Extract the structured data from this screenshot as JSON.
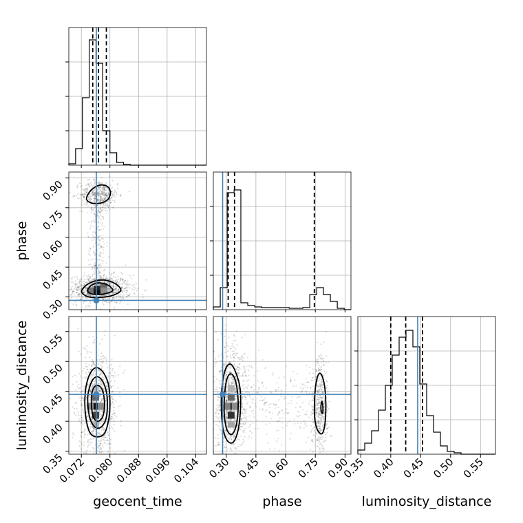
{
  "chart_data": {
    "type": "corner",
    "parameters": [
      "geocent_time",
      "phase",
      "luminosity_distance"
    ],
    "axes": {
      "geocent_time": {
        "label": "geocent_time",
        "range": [
          0.0685,
          0.107
        ],
        "ticks": [
          "0.072",
          "0.080",
          "0.088",
          "0.096",
          "0.104"
        ]
      },
      "phase": {
        "label": "phase",
        "range": [
          0.235,
          0.93
        ],
        "ticks": [
          "0.30",
          "0.45",
          "0.60",
          "0.75",
          "0.90"
        ]
      },
      "luminosity_distance": {
        "label": "luminosity_distance",
        "range": [
          0.345,
          0.575
        ],
        "ticks": [
          "0.35",
          "0.40",
          "0.45",
          "0.50",
          "0.55"
        ]
      }
    },
    "truths": {
      "geocent_time": 0.0762,
      "phase": 0.282,
      "luminosity_distance": 0.445
    },
    "quantiles": {
      "geocent_time": [
        0.0752,
        0.0768,
        0.079
      ],
      "phase": [
        0.31,
        0.342,
        0.745
      ],
      "luminosity_distance": [
        0.4,
        0.425,
        0.453
      ]
    },
    "histograms": {
      "geocent_time": {
        "edges": [
          0.0685,
          0.0704,
          0.0723,
          0.0742,
          0.0761,
          0.078,
          0.08,
          0.0819,
          0.0838,
          0.0857,
          0.0876,
          0.0895,
          0.0915,
          0.0934,
          0.0953,
          0.0972,
          0.0991,
          0.101,
          0.103,
          0.105,
          0.107
        ],
        "counts": [
          0.01,
          0.12,
          0.49,
          0.91,
          0.74,
          0.25,
          0.09,
          0.02,
          0.005,
          0,
          0,
          0,
          0,
          0,
          0,
          0,
          0,
          0,
          0,
          0
        ]
      },
      "phase": {
        "edges": [
          0.235,
          0.27,
          0.305,
          0.34,
          0.374,
          0.409,
          0.444,
          0.479,
          0.513,
          0.548,
          0.583,
          0.618,
          0.652,
          0.687,
          0.722,
          0.757,
          0.791,
          0.826,
          0.861,
          0.896,
          0.93
        ],
        "counts": [
          0.02,
          0.16,
          0.85,
          0.87,
          0.05,
          0.03,
          0.02,
          0.015,
          0.015,
          0.015,
          0.015,
          0.01,
          0.01,
          0.015,
          0.11,
          0.16,
          0.11,
          0.06,
          0.01,
          0
        ]
      },
      "luminosity_distance": {
        "edges": [
          0.345,
          0.3565,
          0.368,
          0.3795,
          0.391,
          0.4025,
          0.414,
          0.4255,
          0.437,
          0.4485,
          0.46,
          0.4715,
          0.483,
          0.4945,
          0.506,
          0.5175,
          0.529,
          0.5405,
          0.552,
          0.5635,
          0.575
        ],
        "counts": [
          0.03,
          0.08,
          0.17,
          0.32,
          0.5,
          0.72,
          0.85,
          0.9,
          0.78,
          0.51,
          0.28,
          0.16,
          0.06,
          0.02,
          0.01,
          0,
          0,
          0,
          0,
          0
        ]
      }
    },
    "contours_2d": {
      "phase_vs_geocent_time": [
        {
          "level": "outer",
          "points": [
            [
              0.0721,
              0.322
            ],
            [
              0.0736,
              0.302
            ],
            [
              0.076,
              0.296
            ],
            [
              0.079,
              0.3
            ],
            [
              0.0815,
              0.312
            ],
            [
              0.083,
              0.33
            ],
            [
              0.0825,
              0.352
            ],
            [
              0.0805,
              0.375
            ],
            [
              0.078,
              0.385
            ],
            [
              0.0755,
              0.378
            ],
            [
              0.0735,
              0.36
            ],
            [
              0.0724,
              0.34
            ]
          ]
        },
        {
          "level": "mid",
          "points": [
            [
              0.0738,
              0.328
            ],
            [
              0.075,
              0.314
            ],
            [
              0.0768,
              0.311
            ],
            [
              0.0792,
              0.318
            ],
            [
              0.0808,
              0.332
            ],
            [
              0.08,
              0.352
            ],
            [
              0.0784,
              0.366
            ],
            [
              0.0765,
              0.37
            ],
            [
              0.0748,
              0.358
            ],
            [
              0.074,
              0.342
            ]
          ]
        },
        {
          "level": "outer",
          "points": [
            [
              0.0735,
              0.79
            ],
            [
              0.074,
              0.822
            ],
            [
              0.0755,
              0.85
            ],
            [
              0.0772,
              0.864
            ],
            [
              0.079,
              0.86
            ],
            [
              0.08,
              0.84
            ],
            [
              0.08,
              0.81
            ],
            [
              0.079,
              0.785
            ],
            [
              0.077,
              0.772
            ],
            [
              0.075,
              0.773
            ]
          ]
        }
      ],
      "luminosity_distance_vs_geocent_time": [
        {
          "level": "outer",
          "points": [
            [
              0.073,
              0.44
            ],
            [
              0.0738,
              0.47
            ],
            [
              0.0755,
              0.488
            ],
            [
              0.0775,
              0.486
            ],
            [
              0.0794,
              0.466
            ],
            [
              0.08,
              0.435
            ],
            [
              0.0797,
              0.405
            ],
            [
              0.0785,
              0.38
            ],
            [
              0.0765,
              0.374
            ],
            [
              0.0745,
              0.38
            ],
            [
              0.0733,
              0.405
            ]
          ]
        },
        {
          "level": "mid",
          "points": [
            [
              0.0738,
              0.44
            ],
            [
              0.0746,
              0.462
            ],
            [
              0.076,
              0.474
            ],
            [
              0.0776,
              0.47
            ],
            [
              0.0789,
              0.452
            ],
            [
              0.0793,
              0.428
            ],
            [
              0.0788,
              0.402
            ],
            [
              0.0772,
              0.389
            ],
            [
              0.0755,
              0.392
            ],
            [
              0.0742,
              0.41
            ]
          ]
        },
        {
          "level": "inner",
          "points": [
            [
              0.0748,
              0.438
            ],
            [
              0.0754,
              0.455
            ],
            [
              0.0766,
              0.46
            ],
            [
              0.0779,
              0.452
            ],
            [
              0.0785,
              0.43
            ],
            [
              0.078,
              0.408
            ],
            [
              0.0765,
              0.4
            ],
            [
              0.0752,
              0.41
            ]
          ]
        }
      ],
      "luminosity_distance_vs_phase": [
        {
          "level": "outer",
          "points": [
            [
              0.275,
              0.43
            ],
            [
              0.282,
              0.465
            ],
            [
              0.3,
              0.49
            ],
            [
              0.325,
              0.495
            ],
            [
              0.35,
              0.48
            ],
            [
              0.37,
              0.455
            ],
            [
              0.372,
              0.42
            ],
            [
              0.36,
              0.385
            ],
            [
              0.335,
              0.365
            ],
            [
              0.305,
              0.368
            ],
            [
              0.283,
              0.39
            ]
          ]
        },
        {
          "level": "mid",
          "points": [
            [
              0.29,
              0.432
            ],
            [
              0.298,
              0.462
            ],
            [
              0.315,
              0.478
            ],
            [
              0.338,
              0.475
            ],
            [
              0.356,
              0.452
            ],
            [
              0.36,
              0.42
            ],
            [
              0.35,
              0.392
            ],
            [
              0.328,
              0.378
            ],
            [
              0.305,
              0.385
            ],
            [
              0.292,
              0.405
            ]
          ]
        },
        {
          "level": "outer",
          "points": [
            [
              0.745,
              0.42
            ],
            [
              0.752,
              0.46
            ],
            [
              0.77,
              0.48
            ],
            [
              0.79,
              0.47
            ],
            [
              0.802,
              0.44
            ],
            [
              0.8,
              0.4
            ],
            [
              0.786,
              0.38
            ],
            [
              0.765,
              0.383
            ],
            [
              0.75,
              0.398
            ]
          ]
        },
        {
          "level": "inner",
          "points": [
            [
              0.778,
              0.424
            ],
            [
              0.783,
              0.433
            ],
            [
              0.788,
              0.425
            ],
            [
              0.787,
              0.414
            ],
            [
              0.781,
              0.415
            ]
          ]
        }
      ]
    },
    "density_cores": {
      "phase_vs_geocent_time": [
        [
          0.0745,
          0.33,
          0.55
        ],
        [
          0.0764,
          0.33,
          0.95
        ],
        [
          0.0764,
          0.352,
          0.85
        ],
        [
          0.0783,
          0.352,
          0.6
        ],
        [
          0.0783,
          0.33,
          0.45
        ],
        [
          0.0764,
          0.372,
          0.3
        ]
      ],
      "luminosity_distance_vs_geocent_time": [
        [
          0.076,
          0.425,
          0.95
        ],
        [
          0.076,
          0.41,
          0.75
        ],
        [
          0.076,
          0.44,
          0.6
        ],
        [
          0.0745,
          0.425,
          0.45
        ],
        [
          0.0775,
          0.425,
          0.45
        ],
        [
          0.076,
          0.395,
          0.3
        ],
        [
          0.076,
          0.455,
          0.25
        ]
      ],
      "luminosity_distance_vs_phase": [
        [
          0.325,
          0.425,
          0.95
        ],
        [
          0.325,
          0.41,
          0.8
        ],
        [
          0.325,
          0.44,
          0.6
        ],
        [
          0.305,
          0.425,
          0.5
        ],
        [
          0.345,
          0.425,
          0.45
        ],
        [
          0.325,
          0.395,
          0.35
        ],
        [
          0.325,
          0.455,
          0.3
        ]
      ]
    },
    "grid": true
  }
}
